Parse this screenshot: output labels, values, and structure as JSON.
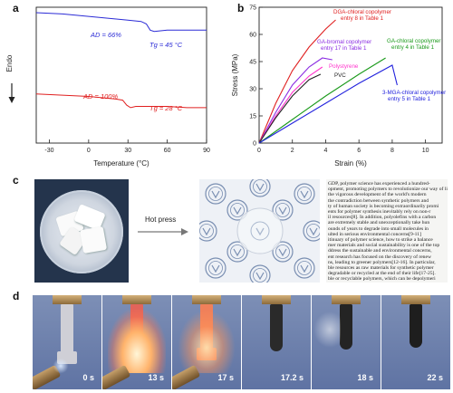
{
  "panels": {
    "a": "a",
    "b": "b",
    "c": "c",
    "d": "d"
  },
  "chart_data": [
    {
      "type": "line",
      "panel": "a",
      "xlabel": "Temperature (°C)",
      "ylabel": "Endo",
      "xlim": [
        -40,
        90
      ],
      "xticks": [
        -30,
        0,
        30,
        60,
        90
      ],
      "series": [
        {
          "name": "AD = 66%",
          "color": "#2b2bd6",
          "tg_label": "Tg = 45 °C",
          "x": [
            -40,
            -20,
            0,
            20,
            30,
            40,
            44,
            47,
            50,
            60,
            75,
            90
          ],
          "y": [
            1.0,
            0.99,
            0.97,
            0.95,
            0.94,
            0.93,
            0.91,
            0.86,
            0.85,
            0.86,
            0.86,
            0.86
          ]
        },
        {
          "name": "AD = 100%",
          "color": "#e02020",
          "tg_label": "Tg = 28 °C",
          "x": [
            -40,
            -20,
            0,
            20,
            26,
            29,
            32,
            36,
            45,
            60,
            75,
            90
          ],
          "y": [
            0.35,
            0.34,
            0.33,
            0.31,
            0.3,
            0.26,
            0.24,
            0.25,
            0.25,
            0.25,
            0.24,
            0.24
          ]
        }
      ]
    },
    {
      "type": "line",
      "panel": "b",
      "xlabel": "Strain (%)",
      "ylabel": "Stress (MPa)",
      "xlim": [
        0,
        11
      ],
      "ylim": [
        0,
        75
      ],
      "xticks": [
        0,
        2,
        4,
        6,
        8,
        10
      ],
      "yticks": [
        0,
        15,
        30,
        45,
        60,
        75
      ],
      "series": [
        {
          "name": "DGA-chloral copolymer entry 8 in Table 1",
          "color": "#e02020",
          "x": [
            0,
            1,
            2,
            3,
            4,
            4.6
          ],
          "y": [
            0,
            22,
            40,
            53,
            63,
            68
          ]
        },
        {
          "name": "GA-bromal copolymer entry 17 in Table 1",
          "color": "#8a2be2",
          "x": [
            0,
            1,
            2,
            3,
            3.8,
            4.4
          ],
          "y": [
            0,
            17,
            32,
            42,
            47,
            46
          ]
        },
        {
          "name": "Polystyrene",
          "color": "#ff33cc",
          "x": [
            0,
            1,
            2,
            3,
            3.8
          ],
          "y": [
            0,
            15,
            28,
            37,
            42
          ]
        },
        {
          "name": "PVC",
          "color": "#222222",
          "x": [
            0,
            1,
            2,
            3,
            3.7
          ],
          "y": [
            0,
            14,
            26,
            35,
            38
          ]
        },
        {
          "name": "GA-chloral copolymer entry 4 in Table 1",
          "color": "#1a9a1a",
          "x": [
            0,
            2,
            4,
            6,
            7.6
          ],
          "y": [
            0,
            13,
            26,
            38,
            47
          ]
        },
        {
          "name": "3-MGA-chloral copolymer entry 5 in Table 1",
          "color": "#2222dd",
          "x": [
            0,
            2,
            4,
            6,
            8.0,
            8.3
          ],
          "y": [
            0,
            11,
            22,
            33,
            43,
            32
          ]
        }
      ]
    }
  ],
  "panel_c": {
    "arrow_label": "Hot press",
    "text_lines": [
      "GDP, polymer science has experienced a hundred-",
      "opment, promoting polymers to revolutionize our way of li",
      "the vigorous development of the world's modern",
      "the contradiction between synthetic polymers and",
      "ty of human society is becoming extraordinarily promi",
      "ents for polymer synthesis inevitably rely on non-r",
      "il resources[8]. In addition, polyolefins with a carbon",
      "are extremely stable and unexceptionally take hun",
      "ounds of years to degrade into small molecules in",
      "ulted in serious environmental concerns[9-11]",
      "itinuary of polymer science, how to strike a balance",
      "mer materials and social sustainability is one of the top",
      "ddress the sustainable and environmental concerns,",
      "ent research has focused on the discovery of renew",
      "ns, leading to greener polymers[12-16]. In particular,",
      "ble resources as raw materials for synthetic polymer",
      "degradable or recycled at the end of their life[17-25].",
      "ble or recyclable polymers, which can be depolymeri"
    ]
  },
  "panel_d": {
    "timestamps": [
      "0 s",
      "13 s",
      "17 s",
      "17.2 s",
      "18 s",
      "22 s"
    ]
  }
}
